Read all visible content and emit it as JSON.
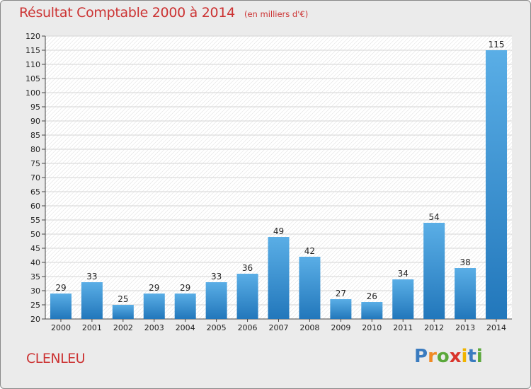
{
  "header": {
    "title": "Résultat Comptable 2000 à 2014",
    "subtitle": "(en milliers d'€)"
  },
  "footer": {
    "commune": "CLENLEU",
    "logo": {
      "letters": [
        "P",
        "r",
        "o",
        "x",
        "i",
        "t",
        "i"
      ]
    }
  },
  "colors": {
    "title": "#cc3333",
    "bar_light": "#5aaee6",
    "bar_dark": "#2277bb",
    "background": "#ebebeb",
    "plot_background": "#ffffff",
    "grid": "#dddddd"
  },
  "chart_data": {
    "type": "bar",
    "title": "Résultat Comptable 2000 à 2014",
    "subtitle": "(en milliers d'€)",
    "xlabel": "",
    "ylabel": "",
    "categories": [
      "2000",
      "2001",
      "2002",
      "2003",
      "2004",
      "2005",
      "2006",
      "2007",
      "2008",
      "2009",
      "2010",
      "2011",
      "2012",
      "2013",
      "2014"
    ],
    "values": [
      29,
      33,
      25,
      29,
      29,
      33,
      36,
      49,
      42,
      27,
      26,
      34,
      54,
      38,
      115
    ],
    "ylim": [
      20,
      120
    ],
    "yticks": [
      20,
      25,
      30,
      35,
      40,
      45,
      50,
      55,
      60,
      65,
      70,
      75,
      80,
      85,
      90,
      95,
      100,
      105,
      110,
      115,
      120
    ],
    "grid": true,
    "data_labels": true
  }
}
